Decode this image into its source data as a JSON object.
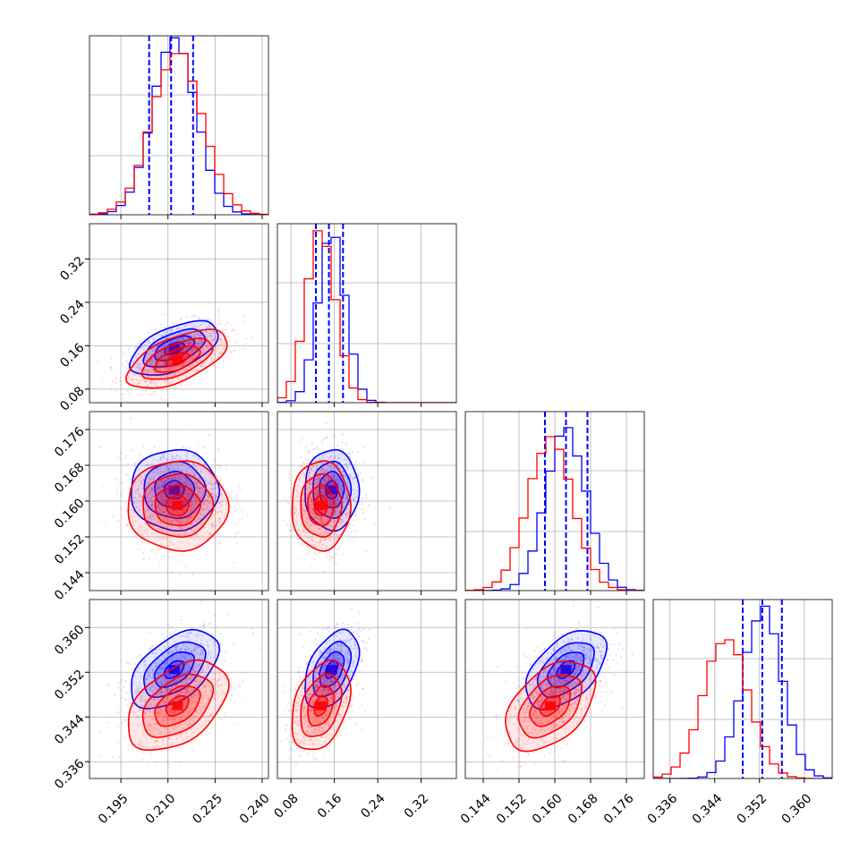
{
  "colors": {
    "blue": "#0000ff",
    "red": "#ff0000",
    "frame": "#000000",
    "grid": "#b0b0b0"
  },
  "chart_data": {
    "type": "corner",
    "grid": true,
    "variables": [
      {
        "range": [
          0.185,
          0.242
        ],
        "ticks": [
          0.195,
          0.21,
          0.225,
          0.24
        ],
        "tick_labels": [
          "0.195",
          "0.210",
          "0.225",
          "0.240"
        ]
      },
      {
        "range": [
          0.055,
          0.385
        ],
        "ticks": [
          0.08,
          0.16,
          0.24,
          0.32
        ],
        "tick_labels": [
          "0.08",
          "0.16",
          "0.24",
          "0.32"
        ]
      },
      {
        "range": [
          0.14,
          0.18
        ],
        "ticks": [
          0.144,
          0.152,
          0.16,
          0.168,
          0.176
        ],
        "tick_labels": [
          "0.144",
          "0.152",
          "0.160",
          "0.168",
          "0.176"
        ]
      },
      {
        "range": [
          0.333,
          0.365
        ],
        "ticks": [
          0.336,
          0.344,
          0.352,
          0.36
        ],
        "tick_labels": [
          "0.336",
          "0.344",
          "0.352",
          "0.360"
        ]
      }
    ],
    "series": [
      {
        "color": "blue",
        "mean": [
          0.212,
          0.155,
          0.1625,
          0.3525
        ],
        "sd": [
          0.007,
          0.025,
          0.0045,
          0.0035
        ],
        "corr": [
          [
            1,
            0.55,
            0.0,
            0.5
          ],
          [
            0.55,
            1,
            0.0,
            0.45
          ],
          [
            0.0,
            0.0,
            1,
            0.5
          ],
          [
            0.5,
            0.45,
            0.5,
            1
          ]
        ],
        "quantiles": [
          [
            0.204,
            0.211,
            0.218
          ],
          [
            0.126,
            0.15,
            0.176
          ],
          [
            0.1578,
            0.1625,
            0.1673
          ],
          [
            0.349,
            0.3525,
            0.356
          ]
        ],
        "hist_peak": [
          0.97,
          0.97,
          0.9,
          0.95
        ]
      },
      {
        "color": "red",
        "mean": [
          0.213,
          0.135,
          0.159,
          0.346
        ],
        "sd": [
          0.008,
          0.027,
          0.005,
          0.004
        ],
        "corr": [
          [
            1,
            0.6,
            0.0,
            0.45
          ],
          [
            0.6,
            1,
            0.0,
            0.35
          ],
          [
            0.0,
            0.0,
            1,
            0.45
          ],
          [
            0.45,
            0.35,
            0.45,
            1
          ]
        ],
        "hist_peak": [
          0.91,
          0.97,
          0.85,
          0.8
        ]
      }
    ]
  }
}
